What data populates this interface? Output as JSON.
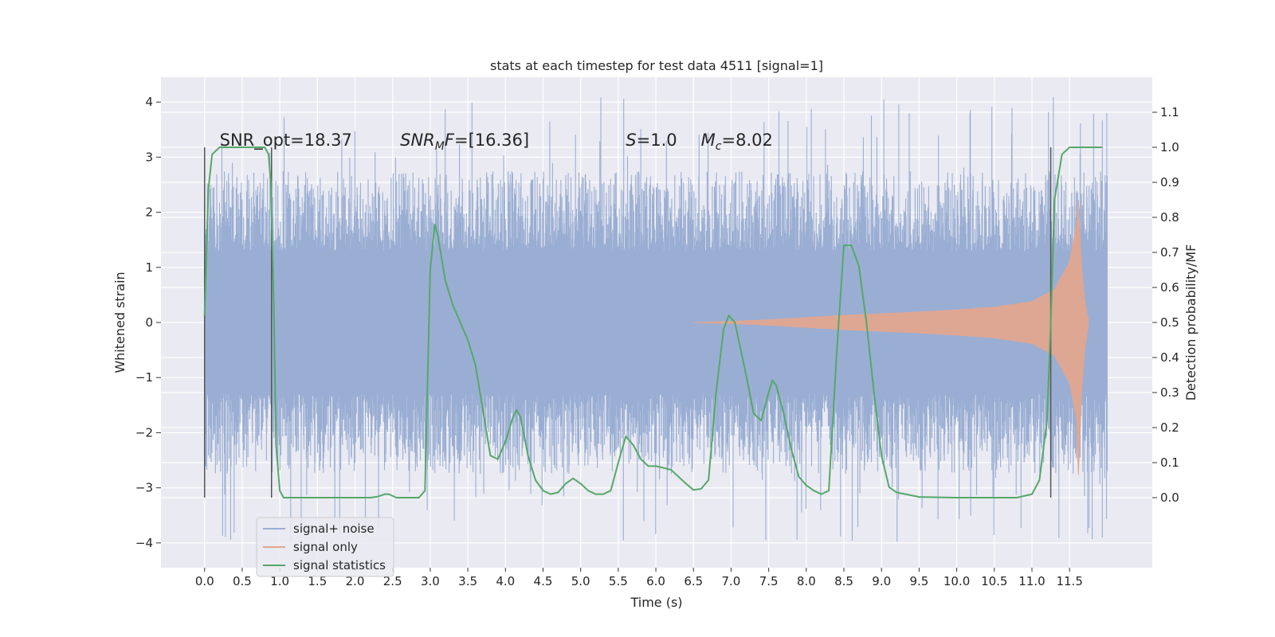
{
  "chart_data": {
    "type": "line",
    "title": "stats at each timestep for test data 4511 [signal=1]",
    "xlabel": "Time (s)",
    "ylabel_left": "Whitened strain",
    "ylabel_right": "Detection probability/MF",
    "xlim": [
      -0.58,
      12.6
    ],
    "ylim_left": [
      -4.45,
      4.45
    ],
    "ylim_right": [
      -0.2,
      1.2
    ],
    "x_ticks": [
      0.0,
      0.5,
      1.0,
      1.5,
      2.0,
      2.5,
      3.0,
      3.5,
      4.0,
      4.5,
      5.0,
      5.5,
      6.0,
      6.5,
      7.0,
      7.5,
      8.0,
      8.5,
      9.0,
      9.5,
      10.0,
      10.5,
      11.0,
      11.5
    ],
    "x_tick_labels": [
      "0.0",
      "0.5",
      "1.0",
      "1.5",
      "2.0",
      "2.5",
      "3.0",
      "3.5",
      "4.0",
      "4.5",
      "5.0",
      "5.5",
      "6.0",
      "6.5",
      "7.0",
      "7.5",
      "8.0",
      "8.5",
      "9.0",
      "9.5",
      "10.0",
      "10.5",
      "11.0",
      "11.5"
    ],
    "y_left_ticks": [
      4,
      3,
      2,
      1,
      0,
      -1,
      -2,
      -3,
      -4
    ],
    "y_left_tick_labels": [
      "4",
      "3",
      "2",
      "1",
      "0",
      "−1",
      "−2",
      "−3",
      "−4"
    ],
    "y_right_ticks": [
      1.1,
      1.0,
      0.9,
      0.8,
      0.7,
      0.6,
      0.5,
      0.4,
      0.3,
      0.2,
      0.1,
      0.0
    ],
    "y_right_tick_labels": [
      "1.1",
      "1.0",
      "0.9",
      "0.8",
      "0.7",
      "0.6",
      "0.5",
      "0.4",
      "0.3",
      "0.2",
      "0.1",
      "0.0"
    ],
    "grid": true,
    "legend_position": "lower-left",
    "annotations": {
      "snr_opt": "SNR_opt=18.37",
      "snr_mf": "SNR_MF=[16.36]",
      "s": "S=1.0",
      "mc": "M_c=8.02"
    },
    "vertical_markers_x": [
      0.0,
      0.89,
      11.25
    ],
    "vertical_markers_range_right": [
      0.0,
      1.0
    ],
    "series": [
      {
        "name": "signal+ noise",
        "color": "#9aaed3",
        "kind": "noise",
        "x_range": [
          0.0,
          12.0
        ],
        "band_envelope": [
          -1.3,
          1.3
        ],
        "spike_range": [
          -3.5,
          4.1
        ]
      },
      {
        "name": "signal only",
        "color": "#e4a68d",
        "kind": "chirp",
        "x_range": [
          6.5,
          11.75
        ],
        "amplitude": [
          [
            6.5,
            0.0
          ],
          [
            7.0,
            0.02
          ],
          [
            7.5,
            0.05
          ],
          [
            8.0,
            0.09
          ],
          [
            8.5,
            0.13
          ],
          [
            9.0,
            0.16
          ],
          [
            9.5,
            0.19
          ],
          [
            10.0,
            0.23
          ],
          [
            10.5,
            0.28
          ],
          [
            11.0,
            0.38
          ],
          [
            11.3,
            0.6
          ],
          [
            11.5,
            1.1
          ],
          [
            11.6,
            1.8
          ],
          [
            11.62,
            2.25
          ],
          [
            11.65,
            1.2
          ],
          [
            11.7,
            0.4
          ],
          [
            11.75,
            0.05
          ]
        ]
      },
      {
        "name": "signal statistics",
        "color": "#55a868",
        "kind": "line",
        "axis": "right",
        "points": [
          [
            0.0,
            0.52
          ],
          [
            0.05,
            0.88
          ],
          [
            0.1,
            0.98
          ],
          [
            0.2,
            1.0
          ],
          [
            0.5,
            1.0
          ],
          [
            0.8,
            1.0
          ],
          [
            0.85,
            0.98
          ],
          [
            0.88,
            0.9
          ],
          [
            0.92,
            0.55
          ],
          [
            0.95,
            0.15
          ],
          [
            1.0,
            0.02
          ],
          [
            1.05,
            0.0
          ],
          [
            1.5,
            0.0
          ],
          [
            2.0,
            0.0
          ],
          [
            2.2,
            0.0
          ],
          [
            2.3,
            0.003
          ],
          [
            2.4,
            0.01
          ],
          [
            2.45,
            0.01
          ],
          [
            2.55,
            0.0
          ],
          [
            2.6,
            0.0
          ],
          [
            2.85,
            0.0
          ],
          [
            2.93,
            0.02
          ],
          [
            3.0,
            0.65
          ],
          [
            3.06,
            0.78
          ],
          [
            3.1,
            0.75
          ],
          [
            3.2,
            0.62
          ],
          [
            3.3,
            0.55
          ],
          [
            3.5,
            0.45
          ],
          [
            3.6,
            0.38
          ],
          [
            3.7,
            0.25
          ],
          [
            3.8,
            0.12
          ],
          [
            3.9,
            0.11
          ],
          [
            4.0,
            0.16
          ],
          [
            4.1,
            0.23
          ],
          [
            4.15,
            0.25
          ],
          [
            4.2,
            0.23
          ],
          [
            4.3,
            0.12
          ],
          [
            4.4,
            0.05
          ],
          [
            4.5,
            0.02
          ],
          [
            4.6,
            0.01
          ],
          [
            4.7,
            0.015
          ],
          [
            4.8,
            0.04
          ],
          [
            4.9,
            0.055
          ],
          [
            5.0,
            0.04
          ],
          [
            5.1,
            0.02
          ],
          [
            5.2,
            0.01
          ],
          [
            5.3,
            0.01
          ],
          [
            5.4,
            0.02
          ],
          [
            5.5,
            0.1
          ],
          [
            5.6,
            0.175
          ],
          [
            5.7,
            0.15
          ],
          [
            5.8,
            0.11
          ],
          [
            5.9,
            0.09
          ],
          [
            6.0,
            0.09
          ],
          [
            6.2,
            0.08
          ],
          [
            6.4,
            0.04
          ],
          [
            6.5,
            0.022
          ],
          [
            6.6,
            0.025
          ],
          [
            6.7,
            0.05
          ],
          [
            6.8,
            0.3
          ],
          [
            6.9,
            0.48
          ],
          [
            6.97,
            0.52
          ],
          [
            7.05,
            0.5
          ],
          [
            7.1,
            0.45
          ],
          [
            7.2,
            0.35
          ],
          [
            7.3,
            0.24
          ],
          [
            7.4,
            0.22
          ],
          [
            7.5,
            0.3
          ],
          [
            7.55,
            0.335
          ],
          [
            7.6,
            0.32
          ],
          [
            7.7,
            0.24
          ],
          [
            7.8,
            0.14
          ],
          [
            7.9,
            0.06
          ],
          [
            8.0,
            0.035
          ],
          [
            8.1,
            0.02
          ],
          [
            8.2,
            0.01
          ],
          [
            8.3,
            0.02
          ],
          [
            8.4,
            0.4
          ],
          [
            8.5,
            0.72
          ],
          [
            8.6,
            0.72
          ],
          [
            8.7,
            0.66
          ],
          [
            8.8,
            0.5
          ],
          [
            8.9,
            0.3
          ],
          [
            9.0,
            0.12
          ],
          [
            9.1,
            0.03
          ],
          [
            9.2,
            0.015
          ],
          [
            9.5,
            0.002
          ],
          [
            10.0,
            0.0
          ],
          [
            10.5,
            0.0
          ],
          [
            10.8,
            0.0
          ],
          [
            11.0,
            0.01
          ],
          [
            11.1,
            0.05
          ],
          [
            11.2,
            0.22
          ],
          [
            11.25,
            0.5
          ],
          [
            11.3,
            0.85
          ],
          [
            11.4,
            0.98
          ],
          [
            11.5,
            1.0
          ],
          [
            11.8,
            1.0
          ],
          [
            11.93,
            1.0
          ]
        ]
      }
    ]
  }
}
